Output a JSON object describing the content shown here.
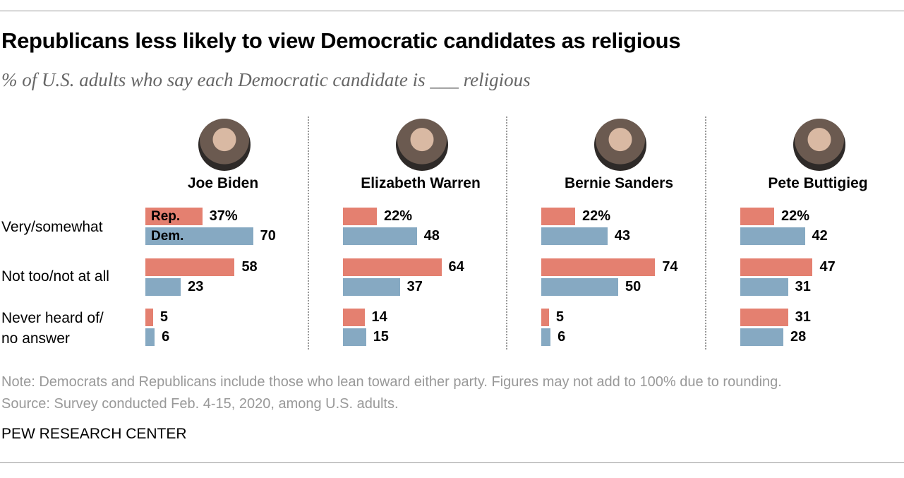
{
  "title": "Republicans less likely to view Democratic candidates as religious",
  "subtitle": "% of U.S. adults who say each Democratic candidate is ___ religious",
  "note": "Note: Democrats and Republicans include those who lean toward either party. Figures may not add to 100% due to rounding.",
  "source": "Source: Survey conducted Feb. 4-15, 2020, among U.S. adults.",
  "brand": "PEW RESEARCH CENTER",
  "colors": {
    "rep": "#e48070",
    "dem": "#86a9c2"
  },
  "chart_data": {
    "type": "bar",
    "orientation": "horizontal",
    "categories": [
      "Very/somewhat",
      "Not too/not at all",
      "Never heard of/ no answer"
    ],
    "category_labels": [
      "Very/somewhat",
      "Not too/not at all",
      "Never heard of/",
      "no answer"
    ],
    "series_labels": {
      "rep": "Rep.",
      "dem": "Dem."
    },
    "first_value_suffix": "%",
    "panels": [
      {
        "name": "Joe Biden",
        "rep": [
          37,
          58,
          5
        ],
        "dem": [
          70,
          23,
          6
        ]
      },
      {
        "name": "Elizabeth Warren",
        "rep": [
          22,
          64,
          14
        ],
        "dem": [
          48,
          37,
          15
        ]
      },
      {
        "name": "Bernie Sanders",
        "rep": [
          22,
          74,
          5
        ],
        "dem": [
          43,
          50,
          6
        ]
      },
      {
        "name": "Pete Buttigieg",
        "rep": [
          22,
          47,
          31
        ],
        "dem": [
          42,
          31,
          28
        ]
      }
    ]
  }
}
